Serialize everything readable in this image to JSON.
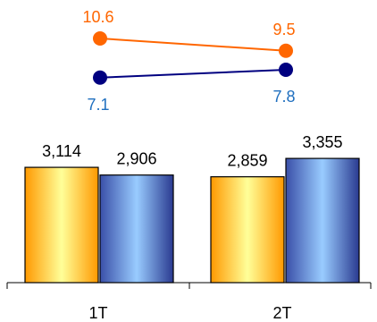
{
  "chart_data": [
    {
      "type": "bar",
      "categories": [
        "1T",
        "2T"
      ],
      "series": [
        {
          "values": [
            3114,
            2859
          ],
          "color": "#FF9900",
          "value_labels": [
            "3,114",
            "2,859"
          ]
        },
        {
          "values": [
            2906,
            3355
          ],
          "color": "#5A8FE0",
          "value_labels": [
            "2,906",
            "3,355"
          ]
        }
      ],
      "ylim": [
        0,
        4000
      ],
      "grid": false
    },
    {
      "type": "line",
      "categories": [
        "1T",
        "2T"
      ],
      "series": [
        {
          "values": [
            10.6,
            9.5
          ],
          "color": "#FF6600",
          "label_color": "#FF6600",
          "value_labels": [
            "10.6",
            "9.5"
          ]
        },
        {
          "values": [
            7.1,
            7.8
          ],
          "color": "#000080",
          "label_color": "#1F6FBF",
          "value_labels": [
            "7.1",
            "7.8"
          ]
        }
      ],
      "ylim": [
        5,
        12
      ]
    }
  ]
}
